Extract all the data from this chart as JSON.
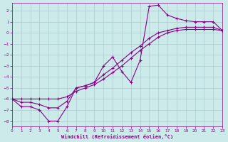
{
  "xlabel": "Windchill (Refroidissement éolien,°C)",
  "bg_color": "#cceaea",
  "grid_color": "#aacccc",
  "line_color": "#880088",
  "xlim": [
    0,
    23
  ],
  "ylim": [
    -8.5,
    2.7
  ],
  "xticks": [
    0,
    1,
    2,
    3,
    4,
    5,
    6,
    7,
    8,
    9,
    10,
    11,
    12,
    13,
    14,
    15,
    16,
    17,
    18,
    19,
    20,
    21,
    22,
    23
  ],
  "yticks": [
    -8,
    -7,
    -6,
    -5,
    -4,
    -3,
    -2,
    -1,
    0,
    1,
    2
  ],
  "curve1_x": [
    0,
    1,
    2,
    3,
    4,
    5,
    6,
    7,
    8,
    9,
    10,
    11,
    12,
    13,
    14,
    15,
    16,
    17,
    18,
    19,
    20,
    21,
    22,
    23
  ],
  "curve1_y": [
    -6.0,
    -6.7,
    -6.7,
    -7.0,
    -8.0,
    -8.0,
    -6.7,
    -5.0,
    -4.8,
    -4.5,
    -3.0,
    -2.2,
    -3.5,
    -4.5,
    -2.5,
    2.4,
    2.5,
    1.6,
    1.3,
    1.1,
    1.0,
    1.0,
    1.0,
    0.2
  ],
  "curve2_x": [
    0,
    1,
    2,
    3,
    4,
    5,
    6,
    7,
    8,
    9,
    10,
    11,
    12,
    13,
    14,
    15,
    16,
    17,
    18,
    19,
    20,
    21,
    22,
    23
  ],
  "curve2_y": [
    -6.0,
    -6.3,
    -6.3,
    -6.5,
    -6.8,
    -6.8,
    -6.2,
    -5.0,
    -4.8,
    -4.5,
    -3.8,
    -3.2,
    -2.5,
    -1.8,
    -1.2,
    -0.5,
    0.0,
    0.2,
    0.4,
    0.5,
    0.5,
    0.5,
    0.5,
    0.2
  ],
  "curve3_x": [
    0,
    1,
    2,
    3,
    4,
    5,
    6,
    7,
    8,
    9,
    10,
    11,
    12,
    13,
    14,
    15,
    16,
    17,
    18,
    19,
    20,
    21,
    22,
    23
  ],
  "curve3_y": [
    -6.0,
    -6.0,
    -6.0,
    -6.0,
    -6.0,
    -6.0,
    -5.8,
    -5.3,
    -5.0,
    -4.7,
    -4.2,
    -3.6,
    -3.0,
    -2.3,
    -1.6,
    -1.0,
    -0.4,
    0.0,
    0.2,
    0.3,
    0.3,
    0.3,
    0.3,
    0.2
  ]
}
